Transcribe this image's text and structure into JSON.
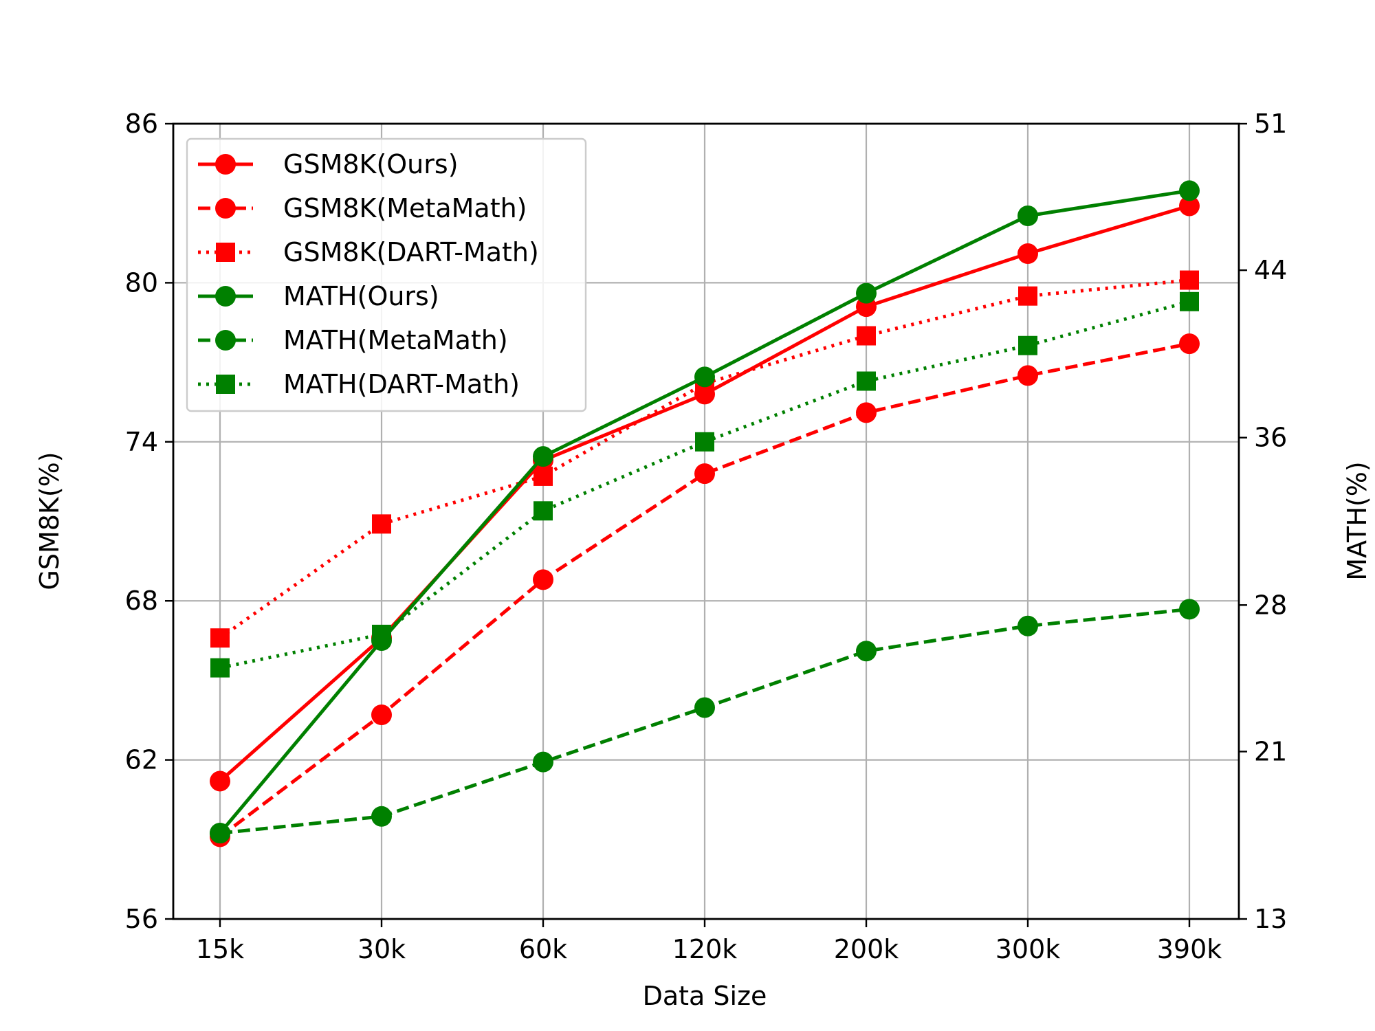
{
  "chart_data": {
    "type": "line",
    "categories": [
      "15k",
      "30k",
      "60k",
      "120k",
      "200k",
      "300k",
      "390k"
    ],
    "xlabel": "Data Size",
    "ylabel_left": "GSM8K(%)",
    "ylabel_right": "MATH(%)",
    "ylim_left": [
      56,
      86
    ],
    "ylim_right": [
      13,
      51
    ],
    "yticks_left": [
      56,
      62,
      68,
      74,
      80,
      86
    ],
    "yticks_right": [
      13,
      21,
      28,
      36,
      44,
      51
    ],
    "grid": true,
    "legend_position": "top-left",
    "series": [
      {
        "name": "GSM8K(Ours)",
        "axis": "left",
        "color": "#ff0000",
        "dash": "solid",
        "marker": "circle",
        "values": [
          61.2,
          66.6,
          73.3,
          75.8,
          79.1,
          81.1,
          82.9
        ]
      },
      {
        "name": "GSM8K(MetaMath)",
        "axis": "left",
        "color": "#ff0000",
        "dash": "dashed",
        "marker": "circle",
        "values": [
          59.1,
          63.7,
          68.8,
          72.8,
          75.1,
          76.5,
          77.7
        ]
      },
      {
        "name": "GSM8K(DART-Math)",
        "axis": "left",
        "color": "#ff0000",
        "dash": "dotted",
        "marker": "square",
        "values": [
          66.6,
          70.9,
          72.7,
          76.2,
          78.0,
          79.5,
          80.1
        ]
      },
      {
        "name": "MATH(Ours)",
        "axis": "right",
        "color": "#008000",
        "dash": "solid",
        "marker": "circle",
        "values": [
          17.1,
          26.3,
          35.1,
          38.9,
          42.9,
          46.6,
          47.8
        ]
      },
      {
        "name": "MATH(MetaMath)",
        "axis": "right",
        "color": "#008000",
        "dash": "dashed",
        "marker": "circle",
        "values": [
          17.1,
          17.9,
          20.5,
          23.1,
          25.8,
          27.0,
          27.8
        ]
      },
      {
        "name": "MATH(DART-Math)",
        "axis": "right",
        "color": "#008000",
        "dash": "dotted",
        "marker": "square",
        "values": [
          25.0,
          26.6,
          32.5,
          35.8,
          38.7,
          40.4,
          42.5
        ]
      }
    ]
  }
}
